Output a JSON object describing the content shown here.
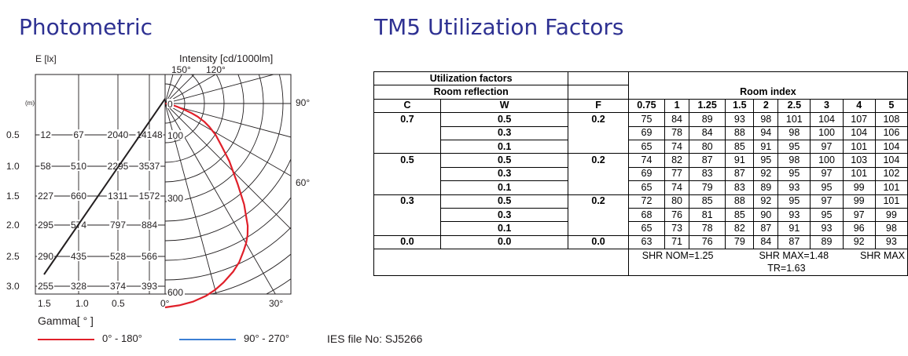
{
  "photometric": {
    "title": "Photometric",
    "e_axis_label": "E [lx]",
    "intensity_label": "Intensity [cd/1000lm]",
    "top_angle_labels": [
      "150°",
      "120°"
    ],
    "right_angle_labels": [
      "90°",
      "60°"
    ],
    "bottom_angle_labels": [
      "0°",
      "30°"
    ],
    "m_label": "(m)",
    "gamma_label": "Gamma[ ° ]",
    "rows": [
      {
        "m": "0.5",
        "values": [
          "12",
          "67",
          "2040",
          "14148"
        ]
      },
      {
        "m": "1.0",
        "values": [
          "58",
          "510",
          "2295",
          "3537"
        ]
      },
      {
        "m": "1.5",
        "values": [
          "227",
          "660",
          "1311",
          "1572"
        ]
      },
      {
        "m": "2.0",
        "values": [
          "295",
          "574",
          "797",
          "884"
        ]
      },
      {
        "m": "2.5",
        "values": [
          "290",
          "435",
          "528",
          "566"
        ]
      },
      {
        "m": "3.0",
        "values": [
          "255",
          "328",
          "374",
          "393"
        ]
      }
    ],
    "bottom_axis_ticks": [
      "1.5",
      "1.0",
      "0.5",
      "0°"
    ],
    "legend": [
      {
        "label": "0° - 180°",
        "color": "#e0202a"
      },
      {
        "label": "90° - 270°",
        "color": "#3b7fd4"
      }
    ],
    "ies_file": "IES file No: SJ5266"
  },
  "chart_data": {
    "type": "line",
    "subtype": "polar-intensity",
    "title": "Photometric",
    "ylabel": "Intensity [cd/1000lm]",
    "radial_ticks": [
      0,
      100,
      300,
      600
    ],
    "angle_range_deg": [
      0,
      180
    ],
    "series": [
      {
        "name": "0° - 180°",
        "color": "#e0202a",
        "gamma_deg": [
          0,
          4,
          8,
          12,
          15,
          18,
          22,
          25,
          28,
          30,
          32,
          34,
          38,
          42,
          48,
          53,
          58,
          62,
          65,
          68,
          70,
          72,
          75,
          80,
          85,
          90
        ],
        "intensity": [
          650,
          645,
          638,
          627,
          615,
          600,
          578,
          558,
          532,
          515,
          495,
          470,
          408,
          345,
          275,
          225,
          190,
          160,
          138,
          112,
          90,
          65,
          40,
          20,
          8,
          0
        ]
      },
      {
        "name": "90° - 270°",
        "color": "#3b7fd4",
        "gamma_deg": [],
        "intensity": []
      }
    ]
  },
  "tm5": {
    "title": "TM5 Utilization Factors",
    "utilization_label": "Utilization factors",
    "room_reflection_label": "Room reflection",
    "room_index_label": "Room index",
    "col_c": "C",
    "col_w": "W",
    "col_f": "F",
    "room_indices": [
      "0.75",
      "1",
      "1.25",
      "1.5",
      "2",
      "2.5",
      "3",
      "4",
      "5"
    ],
    "rows": [
      {
        "c": "0.7",
        "w": "0.5",
        "f": "0.2",
        "vals": [
          "75",
          "84",
          "89",
          "93",
          "98",
          "101",
          "104",
          "107",
          "108"
        ]
      },
      {
        "c": "",
        "w": "0.3",
        "f": "",
        "vals": [
          "69",
          "78",
          "84",
          "88",
          "94",
          "98",
          "100",
          "104",
          "106"
        ]
      },
      {
        "c": "",
        "w": "0.1",
        "f": "",
        "vals": [
          "65",
          "74",
          "80",
          "85",
          "91",
          "95",
          "97",
          "101",
          "104"
        ]
      },
      {
        "c": "0.5",
        "w": "0.5",
        "f": "0.2",
        "vals": [
          "74",
          "82",
          "87",
          "91",
          "95",
          "98",
          "100",
          "103",
          "104"
        ]
      },
      {
        "c": "",
        "w": "0.3",
        "f": "",
        "vals": [
          "69",
          "77",
          "83",
          "87",
          "92",
          "95",
          "97",
          "101",
          "102"
        ]
      },
      {
        "c": "",
        "w": "0.1",
        "f": "",
        "vals": [
          "65",
          "74",
          "79",
          "83",
          "89",
          "93",
          "95",
          "99",
          "101"
        ]
      },
      {
        "c": "0.3",
        "w": "0.5",
        "f": "0.2",
        "vals": [
          "72",
          "80",
          "85",
          "88",
          "92",
          "95",
          "97",
          "99",
          "101"
        ]
      },
      {
        "c": "",
        "w": "0.3",
        "f": "",
        "vals": [
          "68",
          "76",
          "81",
          "85",
          "90",
          "93",
          "95",
          "97",
          "99"
        ]
      },
      {
        "c": "",
        "w": "0.1",
        "f": "",
        "vals": [
          "65",
          "73",
          "78",
          "82",
          "87",
          "91",
          "93",
          "96",
          "98"
        ]
      },
      {
        "c": "0.0",
        "w": "0.0",
        "f": "0.0",
        "vals": [
          "63",
          "71",
          "76",
          "79",
          "84",
          "87",
          "89",
          "92",
          "93"
        ]
      }
    ],
    "shr_nom": "SHR NOM=1.25",
    "shr_max_value": "SHR MAX=1.48",
    "shr_max": "SHR MAX",
    "tr": "TR=1.63"
  }
}
